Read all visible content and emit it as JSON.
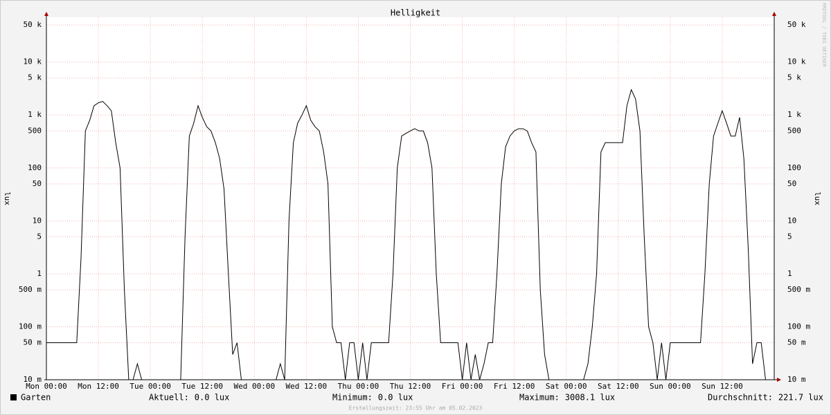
{
  "chart_data": {
    "type": "line",
    "title": "Helligkeit",
    "ylabel": "lux",
    "y2label": "lux",
    "watermark": "RRDTOOL / TOBI OETIKER",
    "footer": "Erstellungszeit: 23:55 Uhr am 05.02.2023",
    "log_y": true,
    "grid": true,
    "xlim": [
      0,
      168
    ],
    "ylim": [
      0.01,
      70000
    ],
    "xticks": [
      {
        "value": 0,
        "label": "Mon 00:00"
      },
      {
        "value": 12,
        "label": "Mon 12:00"
      },
      {
        "value": 24,
        "label": "Tue 00:00"
      },
      {
        "value": 36,
        "label": "Tue 12:00"
      },
      {
        "value": 48,
        "label": "Wed 00:00"
      },
      {
        "value": 60,
        "label": "Wed 12:00"
      },
      {
        "value": 72,
        "label": "Thu 00:00"
      },
      {
        "value": 84,
        "label": "Thu 12:00"
      },
      {
        "value": 96,
        "label": "Fri 00:00"
      },
      {
        "value": 108,
        "label": "Fri 12:00"
      },
      {
        "value": 120,
        "label": "Sat 00:00"
      },
      {
        "value": 132,
        "label": "Sat 12:00"
      },
      {
        "value": 144,
        "label": "Sun 00:00"
      },
      {
        "value": 156,
        "label": "Sun 12:00"
      }
    ],
    "yticks": [
      {
        "value": 0.01,
        "label": "10 m"
      },
      {
        "value": 0.05,
        "label": "50 m"
      },
      {
        "value": 0.1,
        "label": "100 m"
      },
      {
        "value": 0.5,
        "label": "500 m"
      },
      1,
      5,
      10,
      50,
      100,
      500,
      {
        "value": 1000,
        "label": "1 k"
      },
      {
        "value": 5000,
        "label": "5 k"
      },
      {
        "value": 10000,
        "label": "10 k"
      },
      {
        "value": 50000,
        "label": "50 k"
      }
    ],
    "x": [
      0,
      1,
      2,
      3,
      4,
      5,
      6,
      7,
      8,
      9,
      10,
      11,
      12,
      13,
      14,
      15,
      16,
      17,
      18,
      19,
      20,
      21,
      22,
      23,
      24,
      25,
      26,
      27,
      28,
      29,
      30,
      31,
      32,
      33,
      34,
      35,
      36,
      37,
      38,
      39,
      40,
      41,
      42,
      43,
      44,
      45,
      46,
      47,
      48,
      49,
      50,
      51,
      52,
      53,
      54,
      55,
      56,
      57,
      58,
      59,
      60,
      61,
      62,
      63,
      64,
      65,
      66,
      67,
      68,
      69,
      70,
      71,
      72,
      73,
      74,
      75,
      76,
      77,
      78,
      79,
      80,
      81,
      82,
      83,
      84,
      85,
      86,
      87,
      88,
      89,
      90,
      91,
      92,
      93,
      94,
      95,
      96,
      97,
      98,
      99,
      100,
      101,
      102,
      103,
      104,
      105,
      106,
      107,
      108,
      109,
      110,
      111,
      112,
      113,
      114,
      115,
      116,
      117,
      118,
      119,
      120,
      121,
      122,
      123,
      124,
      125,
      126,
      127,
      128,
      129,
      130,
      131,
      132,
      133,
      134,
      135,
      136,
      137,
      138,
      139,
      140,
      141,
      142,
      143,
      144,
      145,
      146,
      147,
      148,
      149,
      150,
      151,
      152,
      153,
      154,
      155,
      156,
      157,
      158,
      159,
      160,
      161,
      162,
      163,
      164,
      165,
      166,
      167,
      168
    ],
    "series": [
      {
        "name": "Garten",
        "color": "#000000",
        "values": [
          0.05,
          0.05,
          0.05,
          0.05,
          0.05,
          0.05,
          0.05,
          0.05,
          2,
          500,
          800,
          1500,
          1700,
          1800,
          1500,
          1200,
          300,
          100,
          0.5,
          0.01,
          0.01,
          0.02,
          0.01,
          0.01,
          0.01,
          0.01,
          0.01,
          0.01,
          0.01,
          0.01,
          0.01,
          0.01,
          5,
          400,
          700,
          1500,
          900,
          600,
          500,
          300,
          150,
          40,
          1,
          0.03,
          0.05,
          0.01,
          0.01,
          0.01,
          0.01,
          0.01,
          0.01,
          0.01,
          0.01,
          0.01,
          0.02,
          0.01,
          10,
          300,
          700,
          1000,
          1500,
          800,
          600,
          500,
          200,
          50,
          0.1,
          0.05,
          0.05,
          0.01,
          0.05,
          0.05,
          0.01,
          0.05,
          0.01,
          0.05,
          0.05,
          0.05,
          0.05,
          0.05,
          1,
          100,
          400,
          450,
          500,
          550,
          500,
          500,
          300,
          100,
          1,
          0.05,
          0.05,
          0.05,
          0.05,
          0.05,
          0.01,
          0.05,
          0.01,
          0.03,
          0.01,
          0.02,
          0.05,
          0.05,
          1,
          50,
          250,
          400,
          500,
          550,
          550,
          500,
          300,
          200,
          0.5,
          0.03,
          0.01,
          0.01,
          0.01,
          0.01,
          0.01,
          0.01,
          0.01,
          0.01,
          0.01,
          0.02,
          0.1,
          1,
          200,
          300,
          300,
          300,
          300,
          300,
          1500,
          3000,
          2000,
          500,
          5,
          0.1,
          0.05,
          0.01,
          0.05,
          0.01,
          0.05,
          0.05,
          0.05,
          0.05,
          0.05,
          0.05,
          0.05,
          0.05,
          1,
          50,
          400,
          700,
          1200,
          700,
          400,
          400,
          900,
          150,
          3,
          0.02,
          0.05,
          0.05,
          0.01,
          0.01,
          0.01
        ]
      }
    ],
    "stats": [
      {
        "label": "Aktuell:",
        "value": "0.0 lux"
      },
      {
        "label": "Minimum:",
        "value": "0.0 lux"
      },
      {
        "label": "Maximum:",
        "value": "3008.1 lux"
      },
      {
        "label": "Durchschnitt:",
        "value": "221.7 lux"
      }
    ]
  }
}
